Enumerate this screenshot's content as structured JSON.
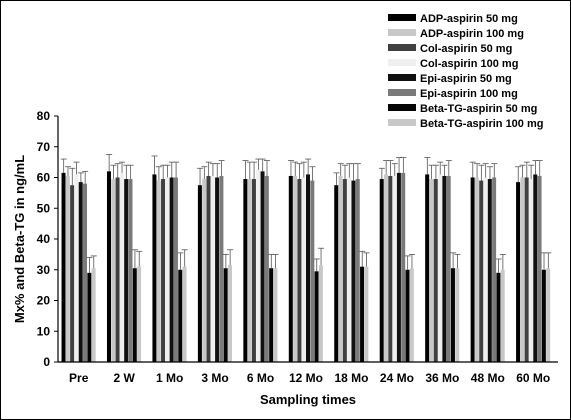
{
  "chart_data": {
    "type": "bar",
    "xlabel": "Sampling times",
    "ylabel": "Mx% and Beta-TG in ng/mL",
    "ylim": [
      0,
      80
    ],
    "yticks": [
      0,
      10,
      20,
      30,
      40,
      50,
      60,
      70,
      80
    ],
    "grid": false,
    "legend_position": "top-right",
    "categories": [
      "Pre",
      "2 W",
      "1 Mo",
      "3 Mo",
      "6 Mo",
      "12 Mo",
      "18 Mo",
      "24 Mo",
      "36 Mo",
      "48 Mo",
      "60 Mo"
    ],
    "series": [
      {
        "name": "ADP-aspirin 50 mg",
        "color": "#000000",
        "values": [
          61.5,
          62.0,
          61.0,
          57.5,
          59.5,
          60.5,
          57.5,
          59.5,
          61.0,
          60.0,
          58.5
        ],
        "errors": [
          4.5,
          5.5,
          6.0,
          5.5,
          6.0,
          5.0,
          4.0,
          3.5,
          5.5,
          5.0,
          5.0
        ]
      },
      {
        "name": "ADP-aspirin 100 mg",
        "color": "#c8c8c8",
        "values": [
          60.5,
          59.5,
          59.0,
          59.5,
          59.5,
          60.5,
          60.5,
          61.0,
          59.5,
          60.0,
          60.0
        ],
        "errors": [
          3.0,
          4.5,
          4.5,
          4.0,
          5.5,
          4.5,
          4.0,
          4.5,
          4.5,
          4.5,
          4.0
        ]
      },
      {
        "name": "Col-aspirin 50 mg",
        "color": "#404040",
        "values": [
          57.5,
          60.0,
          59.5,
          60.5,
          59.5,
          59.5,
          59.5,
          60.5,
          59.5,
          59.0,
          60.0
        ],
        "errors": [
          5.5,
          4.5,
          4.5,
          4.5,
          5.5,
          5.0,
          4.5,
          5.0,
          4.5,
          5.0,
          5.0
        ]
      },
      {
        "name": "Col-aspirin 100 mg",
        "color": "#efefef",
        "values": [
          61.0,
          61.5,
          60.0,
          60.5,
          62.5,
          60.0,
          60.0,
          60.5,
          61.0,
          60.0,
          59.5
        ],
        "errors": [
          4.0,
          3.5,
          4.0,
          4.0,
          3.5,
          5.0,
          4.5,
          4.0,
          4.0,
          4.5,
          4.5
        ]
      },
      {
        "name": "Epi-aspirin 50 mg",
        "color": "#101010",
        "values": [
          58.5,
          59.5,
          60.0,
          60.0,
          62.0,
          61.0,
          59.0,
          61.5,
          60.5,
          59.5,
          61.0
        ],
        "errors": [
          3.0,
          4.5,
          5.0,
          4.5,
          4.0,
          5.0,
          5.5,
          5.0,
          3.5,
          4.0,
          4.5
        ]
      },
      {
        "name": "Epi-aspirin 100 mg",
        "color": "#7a7a7a",
        "values": [
          58.0,
          59.5,
          60.0,
          60.5,
          60.5,
          59.0,
          59.5,
          61.5,
          60.5,
          60.0,
          60.5
        ],
        "errors": [
          4.0,
          4.5,
          5.0,
          5.0,
          5.0,
          4.5,
          5.0,
          5.0,
          5.0,
          4.5,
          5.0
        ]
      },
      {
        "name": "Beta-TG-aspirin 50 mg",
        "color": "#050505",
        "values": [
          29.0,
          30.5,
          30.0,
          30.5,
          30.5,
          29.5,
          31.0,
          30.0,
          30.5,
          29.0,
          30.0
        ],
        "errors": [
          5.0,
          6.0,
          5.5,
          4.5,
          4.5,
          4.0,
          5.0,
          4.5,
          5.0,
          4.5,
          5.5
        ]
      },
      {
        "name": "Beta-TG-aspirin 100 mg",
        "color": "#c8c8c8",
        "values": [
          30.5,
          31.0,
          31.0,
          31.5,
          30.5,
          31.5,
          31.0,
          30.5,
          30.5,
          30.0,
          30.5
        ],
        "errors": [
          4.0,
          5.0,
          5.5,
          5.0,
          4.5,
          5.5,
          4.5,
          4.5,
          4.5,
          5.0,
          5.0
        ]
      }
    ]
  }
}
